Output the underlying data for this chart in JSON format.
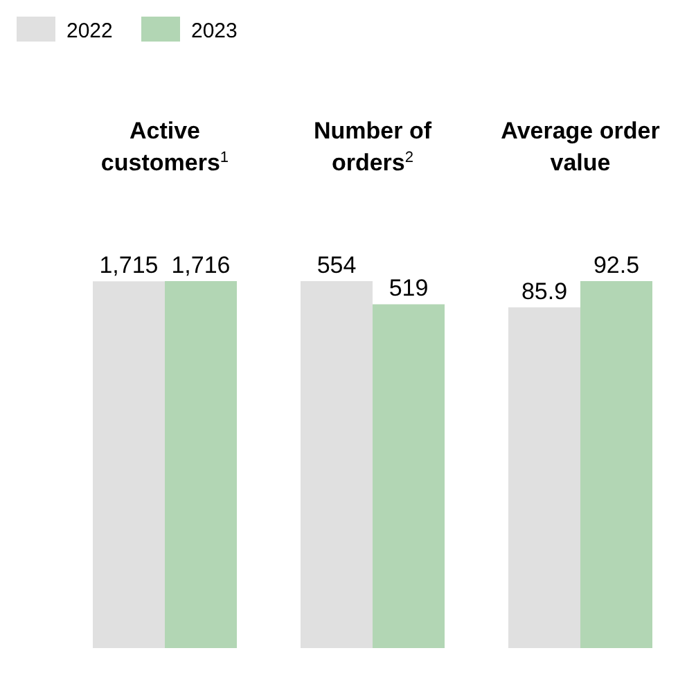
{
  "chart_data": [
    {
      "type": "bar",
      "title": "Active customers$^{1}$",
      "categories": [
        null
      ],
      "legend": "top left",
      "series": [
        {
          "name": "2022",
          "color": "#e0e0e0",
          "values": [
            1715
          ],
          "value_labels": [
            "1,715"
          ]
        },
        {
          "name": "2023",
          "color": "#b2d6b4",
          "values": [
            1716
          ],
          "value_labels": [
            "1,716"
          ]
        }
      ]
    },
    {
      "type": "bar",
      "title": "Number of orders$^{2}$",
      "categories": [
        null
      ],
      "data_labels": true,
      "series": [
        {
          "color": "#e0e0e0",
          "values": [
            554
          ]
        },
        {
          "color": "#b2d6b4",
          "values": [
            519
          ]
        }
      ]
    },
    {
      "type": "bar",
      "title": "Average order value",
      "categories": [
        null
      ],
      "data_labels": true,
      "series": [
        {
          "color": "#e0e0e0",
          "values": [
            85.9
          ]
        },
        {
          "color": "#b2d6b4",
          "values": [
            92.5
          ]
        }
      ]
    }
  ]
}
